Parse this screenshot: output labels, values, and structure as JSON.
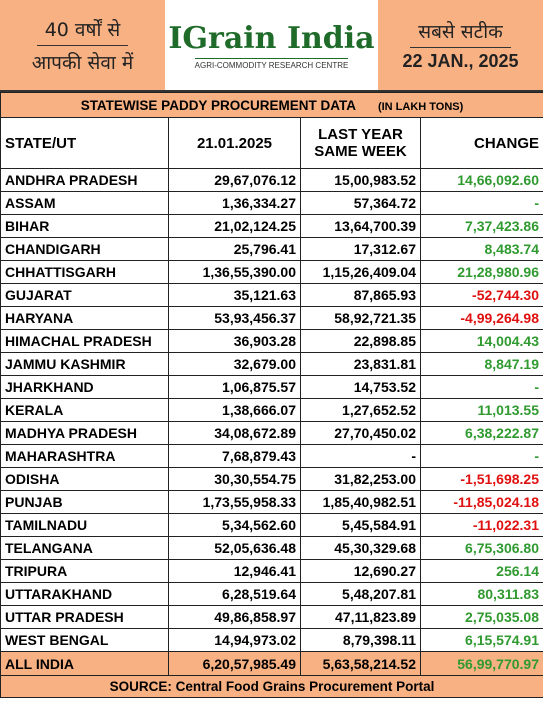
{
  "header": {
    "left_line1": "40 वर्षों से",
    "left_line2": "आपकी सेवा में",
    "logo": "IGrain India",
    "logo_tagline": "AGRI-COMMODITY RESEARCH CENTRE",
    "right_line1": "सबसे सटीक",
    "date": "22 JAN., 2025"
  },
  "table": {
    "title": "STATEWISE PADDY PROCUREMENT DATA",
    "unit": "(IN LAKH TONS)",
    "columns": [
      "STATE/UT",
      "21.01.2025",
      "LAST YEAR SAME WEEK",
      "CHANGE"
    ],
    "rows": [
      [
        "ANDHRA PRADESH",
        "29,67,076.12",
        "15,00,983.52",
        "14,66,092.60"
      ],
      [
        "ASSAM",
        "1,36,334.27",
        "57,364.72",
        "-"
      ],
      [
        "BIHAR",
        "21,02,124.25",
        "13,64,700.39",
        "7,37,423.86"
      ],
      [
        "CHANDIGARH",
        "25,796.41",
        "17,312.67",
        "8,483.74"
      ],
      [
        "CHHATTISGARH",
        "1,36,55,390.00",
        "1,15,26,409.04",
        "21,28,980.96"
      ],
      [
        "GUJARAT",
        "35,121.63",
        "87,865.93",
        "-52,744.30"
      ],
      [
        "HARYANA",
        "53,93,456.37",
        "58,92,721.35",
        "-4,99,264.98"
      ],
      [
        "HIMACHAL PRADESH",
        "36,903.28",
        "22,898.85",
        "14,004.43"
      ],
      [
        "JAMMU KASHMIR",
        "32,679.00",
        "23,831.81",
        "8,847.19"
      ],
      [
        "JHARKHAND",
        "1,06,875.57",
        "14,753.52",
        "-"
      ],
      [
        "KERALA",
        "1,38,666.07",
        "1,27,652.52",
        "11,013.55"
      ],
      [
        "MADHYA PRADESH",
        "34,08,672.89",
        "27,70,450.02",
        "6,38,222.87"
      ],
      [
        "MAHARASHTRA",
        "7,68,879.43",
        "-",
        "-"
      ],
      [
        "ODISHA",
        "30,30,554.75",
        "31,82,253.00",
        "-1,51,698.25"
      ],
      [
        "PUNJAB",
        "1,73,55,958.33",
        "1,85,40,982.51",
        "-11,85,024.18"
      ],
      [
        "TAMILNADU",
        "5,34,562.60",
        "5,45,584.91",
        "-11,022.31"
      ],
      [
        "TELANGANA",
        "52,05,636.48",
        "45,30,329.68",
        "6,75,306.80"
      ],
      [
        "TRIPURA",
        "12,946.41",
        "12,690.27",
        "256.14"
      ],
      [
        "UTTARAKHAND",
        "6,28,519.64",
        "5,48,207.81",
        "80,311.83"
      ],
      [
        "UTTAR PRADESH",
        "49,86,858.97",
        "47,11,823.89",
        "2,75,035.08"
      ],
      [
        "WEST BENGAL",
        "14,94,973.02",
        "8,79,398.11",
        "6,15,574.91"
      ]
    ],
    "total": [
      "ALL INDIA",
      "6,20,57,985.49",
      "5,63,58,214.52",
      "56,99,770.97"
    ],
    "source": "SOURCE: Central Food Grains Procurement Portal"
  }
}
